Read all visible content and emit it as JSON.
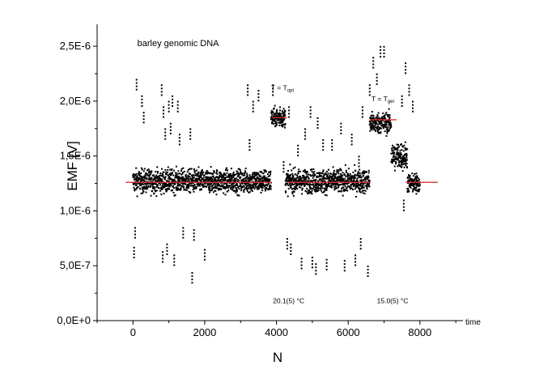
{
  "chart_data": {
    "type": "scatter",
    "title": "",
    "xlabel": "N",
    "ylabel": "EMF [V]",
    "x_unit_label": "time",
    "xlim": [
      -1000,
      9200
    ],
    "ylim": [
      0,
      2.7e-06
    ],
    "x_ticks": [
      0,
      2000,
      4000,
      6000,
      8000
    ],
    "x_tick_labels": [
      "0",
      "2000",
      "4000",
      "6000",
      "8000"
    ],
    "y_ticks": [
      0,
      5e-07,
      1e-06,
      1.5e-06,
      2e-06,
      2.5e-06
    ],
    "y_tick_labels": [
      "0,0E+0",
      "5,0E-7",
      "1,0E-6",
      "1,5E-6",
      "2,0E-6",
      "2,5E-6"
    ],
    "grid": false,
    "legend": "none",
    "segments": [
      {
        "x_start": 0,
        "x_end": 3850,
        "level": 1.27e-06,
        "spread": 1e-07
      },
      {
        "x_start": 3850,
        "x_end": 4250,
        "level": 1.85e-06,
        "spread": 8e-08
      },
      {
        "x_start": 4250,
        "x_end": 6600,
        "level": 1.27e-06,
        "spread": 1e-07
      },
      {
        "x_start": 6600,
        "x_end": 7200,
        "level": 1.8e-06,
        "spread": 9e-08
      },
      {
        "x_start": 7200,
        "x_end": 7650,
        "level": 1.5e-06,
        "spread": 1.2e-07
      },
      {
        "x_start": 7650,
        "x_end": 8000,
        "level": 1.25e-06,
        "spread": 8e-08
      }
    ],
    "mean_lines": [
      {
        "x_start": -200,
        "x_end": 3850,
        "y": 1.26e-06
      },
      {
        "x_start": 3850,
        "x_end": 4300,
        "y": 1.85e-06
      },
      {
        "x_start": 4300,
        "x_end": 6600,
        "y": 1.26e-06
      },
      {
        "x_start": 6600,
        "x_end": 7350,
        "y": 1.83e-06
      },
      {
        "x_start": 7600,
        "x_end": 8500,
        "y": 1.26e-06
      }
    ],
    "outliers": [
      [
        100,
        2.15e-06
      ],
      [
        250,
        2e-06
      ],
      [
        300,
        1.85e-06
      ],
      [
        60,
        8e-07
      ],
      [
        30,
        6.2e-07
      ],
      [
        800,
        2.1e-06
      ],
      [
        850,
        1.9e-06
      ],
      [
        900,
        1.7e-06
      ],
      [
        830,
        5.8e-07
      ],
      [
        950,
        6.5e-07
      ],
      [
        1000,
        1.95e-06
      ],
      [
        1050,
        1.75e-06
      ],
      [
        1100,
        2e-06
      ],
      [
        1150,
        5.5e-07
      ],
      [
        1250,
        1.95e-06
      ],
      [
        1300,
        1.65e-06
      ],
      [
        1400,
        8e-07
      ],
      [
        1600,
        1.7e-06
      ],
      [
        1700,
        7.8e-07
      ],
      [
        1650,
        3.9e-07
      ],
      [
        2000,
        6e-07
      ],
      [
        3200,
        2.1e-06
      ],
      [
        3350,
        1.95e-06
      ],
      [
        3500,
        2.05e-06
      ],
      [
        3250,
        1.6e-06
      ],
      [
        3900,
        2.1e-06
      ],
      [
        4100,
        1.9e-06
      ],
      [
        4200,
        1.4e-06
      ],
      [
        4300,
        7e-07
      ],
      [
        4350,
        1.9e-06
      ],
      [
        4400,
        6.5e-07
      ],
      [
        4600,
        1.55e-06
      ],
      [
        4700,
        5.2e-07
      ],
      [
        4800,
        1.7e-06
      ],
      [
        4950,
        1.9e-06
      ],
      [
        5000,
        5.3e-07
      ],
      [
        5100,
        4.7e-07
      ],
      [
        5150,
        1.8e-06
      ],
      [
        5300,
        1.6e-06
      ],
      [
        5400,
        5.1e-07
      ],
      [
        5550,
        1.6e-06
      ],
      [
        5800,
        1.75e-06
      ],
      [
        5900,
        5e-07
      ],
      [
        6100,
        1.65e-06
      ],
      [
        6200,
        5.5e-07
      ],
      [
        6300,
        1.45e-06
      ],
      [
        6350,
        7e-07
      ],
      [
        6400,
        1.9e-06
      ],
      [
        6550,
        4.5e-07
      ],
      [
        6600,
        2.1e-06
      ],
      [
        6700,
        2.35e-06
      ],
      [
        6800,
        2.2e-06
      ],
      [
        6900,
        2.45e-06
      ],
      [
        7000,
        2.45e-06
      ],
      [
        7500,
        2e-06
      ],
      [
        7600,
        2.3e-06
      ],
      [
        7700,
        2.1e-06
      ],
      [
        7800,
        1.95e-06
      ],
      [
        7550,
        1.05e-06
      ],
      [
        7900,
        1.2e-06
      ]
    ],
    "annotations": [
      {
        "text": "barley genomic DNA",
        "x": 120,
        "y": 2.5e-06
      },
      {
        "text": "T = T",
        "subscript": "opt",
        "x": 3850,
        "y": 2.1e-06
      },
      {
        "text": "T = T",
        "subscript": "ger",
        "x": 6650,
        "y": 2e-06
      },
      {
        "text": "20.1(5) °C",
        "x": 3900,
        "y": 1.6e-07
      },
      {
        "text": "15.0(5) °C",
        "x": 6800,
        "y": 1.6e-07
      }
    ],
    "colors": {
      "points": "#000000",
      "mean_line": "#e03030",
      "axes": "#000000"
    }
  }
}
